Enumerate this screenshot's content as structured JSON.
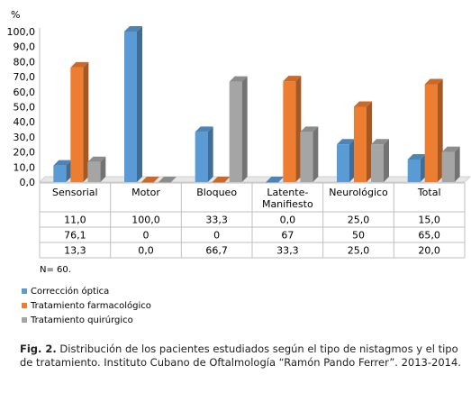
{
  "chart_data": {
    "type": "bar",
    "unit_label": "%",
    "ylim": [
      0,
      100
    ],
    "y_ticks": [
      "0,0",
      "10,0",
      "20,0",
      "30,0",
      "40,0",
      "50,0",
      "60,0",
      "70,0",
      "80,0",
      "90,0",
      "100,0"
    ],
    "grid": false,
    "legend_placement": "bottom-left",
    "categories": [
      "Sensorial",
      "Motor",
      "Bloqueo",
      "Latente-\nManifiesto",
      "Neurológico",
      "Total"
    ],
    "series": [
      {
        "name": "Corrección óptica",
        "color": "#5b9bd5",
        "values": [
          11.0,
          100.0,
          33.3,
          0.0,
          25.0,
          15.0
        ],
        "table_values": [
          "11,0",
          "100,0",
          "33,3",
          "0,0",
          "25,0",
          "15,0"
        ]
      },
      {
        "name": "Tratamiento farmacológico",
        "color": "#ed7d31",
        "values": [
          76.1,
          0,
          0,
          67,
          50,
          65.0
        ],
        "table_values": [
          "76,1",
          "0",
          "0",
          "67",
          "50",
          "65,0"
        ]
      },
      {
        "name": "Tratamiento quirúrgico",
        "color": "#a5a5a5",
        "values": [
          13.3,
          0.0,
          66.7,
          33.3,
          25.0,
          20.0
        ],
        "table_values": [
          "13,3",
          "0,0",
          "66,7",
          "33,3",
          "25,0",
          "20,0"
        ]
      }
    ]
  },
  "note": "N= 60.",
  "caption": {
    "label": "Fig. 2.",
    "text": " Distribución de los pacientes estudiados según el tipo de nistagmos y el tipo de tratamiento.  Instituto Cubano de Oftalmología “Ramón Pando Ferrer”. 2013-2014."
  }
}
